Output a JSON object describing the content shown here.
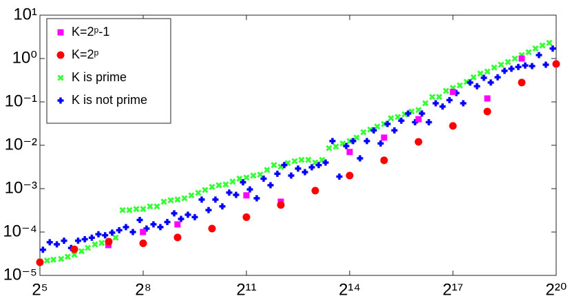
{
  "chart_data": {
    "type": "scatter",
    "xscale": "log",
    "yscale": "log",
    "legend": "upper left",
    "xlim": [
      32,
      1048576
    ],
    "ylim": [
      1e-05,
      10
    ],
    "xticks": [
      {
        "value": 32,
        "label": "2⁵"
      },
      {
        "value": 256,
        "label": "2⁸"
      },
      {
        "value": 2048,
        "label": "2¹¹"
      },
      {
        "value": 16384,
        "label": "2¹⁴"
      },
      {
        "value": 131072,
        "label": "2¹⁷"
      },
      {
        "value": 1048576,
        "label": "2²⁰"
      }
    ],
    "yticks": [
      {
        "value": 1e-05,
        "label": "10⁻⁵"
      },
      {
        "value": 0.0001,
        "label": "10⁻⁴"
      },
      {
        "value": 0.001,
        "label": "10⁻³"
      },
      {
        "value": 0.01,
        "label": "10⁻²"
      },
      {
        "value": 0.1,
        "label": "10⁻¹"
      },
      {
        "value": 1,
        "label": "10⁰"
      },
      {
        "value": 10,
        "label": "10¹"
      }
    ],
    "series": [
      {
        "name": "K=2ᵖ-1",
        "color": "#ff00ff",
        "marker": "square",
        "x": [
          127,
          255,
          511,
          2047,
          4095,
          16383,
          32767,
          65535,
          131071,
          262143,
          524287
        ],
        "values": [
          5e-05,
          0.0001,
          0.00015,
          0.0007,
          0.0005,
          0.007,
          0.015,
          0.04,
          0.17,
          0.12,
          1.0
        ]
      },
      {
        "name": "K=2ᵖ",
        "color": "#ff0000",
        "marker": "circle",
        "x": [
          32,
          64,
          128,
          256,
          512,
          1024,
          2048,
          4096,
          8192,
          16384,
          32768,
          65536,
          131072,
          262144,
          524288,
          1048576
        ],
        "values": [
          2e-05,
          4e-05,
          6e-05,
          5.5e-05,
          7.5e-05,
          0.00012,
          0.00022,
          0.00042,
          0.0009,
          0.002,
          0.0045,
          0.012,
          0.028,
          0.06,
          0.28,
          0.75
        ]
      },
      {
        "name": "K is prime",
        "color": "#33ff33",
        "marker": "x",
        "x": [
          32,
          37,
          42,
          49,
          56,
          64,
          74,
          84,
          97,
          111,
          128,
          147,
          169,
          194,
          223,
          256,
          294,
          338,
          388,
          446,
          512,
          588,
          676,
          776,
          891,
          1024,
          1176,
          1351,
          1552,
          1783,
          2048,
          2353,
          2702,
          3104,
          3566,
          4096,
          4705,
          5405,
          6208,
          7132,
          8192,
          9410,
          10809,
          12417,
          14263,
          16384,
          18820,
          21619,
          24834,
          28526,
          32768,
          37641,
          43238,
          49667,
          57052,
          65536,
          75281,
          86475,
          99334,
          114104,
          131072,
          150562,
          172950,
          198668,
          228209,
          262144,
          301124,
          345901,
          397336,
          456419,
          524288,
          602249,
          691802,
          794672,
          912838
        ],
        "values": [
          2.1e-05,
          2.2e-05,
          2.3e-05,
          2.4e-05,
          2.7e-05,
          3e-05,
          3.6e-05,
          4.3e-05,
          5.2e-05,
          5.6e-05,
          5.8e-05,
          7.4e-05,
          0.00032,
          0.00032,
          0.00034,
          0.00034,
          0.00039,
          0.00039,
          0.0005,
          0.00054,
          0.00056,
          0.0006,
          0.0007,
          0.0008,
          0.00093,
          0.0011,
          0.0012,
          0.00125,
          0.00145,
          0.0017,
          0.0018,
          0.002,
          0.0021,
          0.0027,
          0.0035,
          0.0032,
          0.0039,
          0.0043,
          0.0046,
          0.0046,
          0.004,
          0.0046,
          0.0086,
          0.0093,
          0.011,
          0.0125,
          0.015,
          0.02,
          0.023,
          0.027,
          0.031,
          0.042,
          0.045,
          0.052,
          0.06,
          0.065,
          0.093,
          0.13,
          0.13,
          0.18,
          0.21,
          0.24,
          0.29,
          0.37,
          0.45,
          0.5,
          0.62,
          0.72,
          0.83,
          1.0,
          1.2,
          1.4,
          1.7,
          2.0,
          2.3
        ]
      },
      {
        "name": "K is not prime",
        "color": "#0000ff",
        "marker": "plus",
        "x": [
          34,
          39,
          45,
          52,
          60,
          69,
          79,
          91,
          104,
          119,
          137,
          158,
          181,
          208,
          239,
          274,
          315,
          362,
          416,
          478,
          549,
          630,
          724,
          832,
          955,
          1097,
          1261,
          1448,
          1663,
          1911,
          2195,
          2521,
          2896,
          3327,
          3821,
          4390,
          5043,
          5793,
          6654,
          7643,
          8780,
          10086,
          11585,
          13308,
          15287,
          17560,
          20171,
          23170,
          26616,
          30574,
          35120,
          40342,
          46341,
          53232,
          61147,
          70240,
          80684,
          92682,
          106464,
          122295,
          140479,
          161369,
          185364,
          212927,
          244589,
          280959,
          322737,
          370728,
          425854,
          489178,
          561918,
          645474,
          741455,
          851708,
          978356
        ],
        "values": [
          3.9e-05,
          5.8e-05,
          5.2e-05,
          6.3e-05,
          4.3e-05,
          6.3e-05,
          6.8e-05,
          7.4e-05,
          8.9e-05,
          8.4e-05,
          9.7e-05,
          0.00011,
          0.00013,
          0.0001,
          0.00019,
          0.00012,
          0.00015,
          0.00013,
          0.00017,
          0.00027,
          0.0002,
          0.00025,
          0.00022,
          0.00056,
          0.00032,
          0.00056,
          0.00039,
          0.00081,
          0.00072,
          0.0014,
          0.00096,
          0.0006,
          0.0017,
          0.0012,
          0.0022,
          0.0035,
          0.002,
          0.0029,
          0.0024,
          0.0031,
          0.0035,
          0.004,
          0.0125,
          0.0019,
          0.0096,
          0.0125,
          0.005,
          0.0125,
          0.022,
          0.011,
          0.031,
          0.022,
          0.037,
          0.054,
          0.034,
          0.054,
          0.034,
          0.093,
          0.078,
          0.11,
          0.16,
          0.093,
          0.28,
          0.23,
          0.36,
          0.28,
          0.37,
          0.52,
          0.58,
          0.64,
          0.69,
          0.67,
          1.2,
          0.72,
          1.7
        ]
      }
    ]
  }
}
